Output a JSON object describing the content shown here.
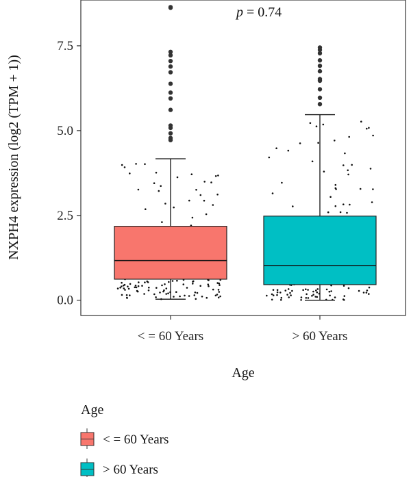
{
  "chart_data": {
    "type": "boxplot",
    "title": "",
    "xlabel": "Age",
    "ylabel": "NXPH4 expression (log2 (TPM + 1))",
    "ylim": [
      -0.45,
      8.85
    ],
    "yticks": [
      0.0,
      2.5,
      5.0,
      7.5
    ],
    "ytick_labels": [
      "0.0",
      "2.5",
      "5.0",
      "7.5"
    ],
    "annotation": {
      "p_label": "p",
      "p_text": " = 0.74"
    },
    "grid": false,
    "legend": {
      "title": "Age",
      "position": "bottom-left"
    },
    "categories": [
      "< = 60 Years",
      "> 60 Years"
    ],
    "series": [
      {
        "name": "< = 60 Years",
        "color": "#F8766D",
        "stats": {
          "min": 0.03,
          "q1": 0.62,
          "median": 1.17,
          "q3": 2.18,
          "max": 4.17
        },
        "outliers": [
          4.72,
          4.78,
          4.92,
          5.08,
          5.15,
          5.61,
          5.95,
          6.12,
          6.38,
          6.72,
          6.89,
          7.05,
          7.22,
          7.32,
          8.62,
          8.64
        ]
      },
      {
        "name": "> 60 Years",
        "color": "#00BFC4",
        "stats": {
          "min": 0.0,
          "q1": 0.46,
          "median": 1.02,
          "q3": 2.48,
          "max": 5.47
        },
        "outliers": [
          5.78,
          5.97,
          6.22,
          6.47,
          6.52,
          6.75,
          6.91,
          7.07,
          7.28,
          7.38,
          7.45
        ]
      }
    ]
  }
}
